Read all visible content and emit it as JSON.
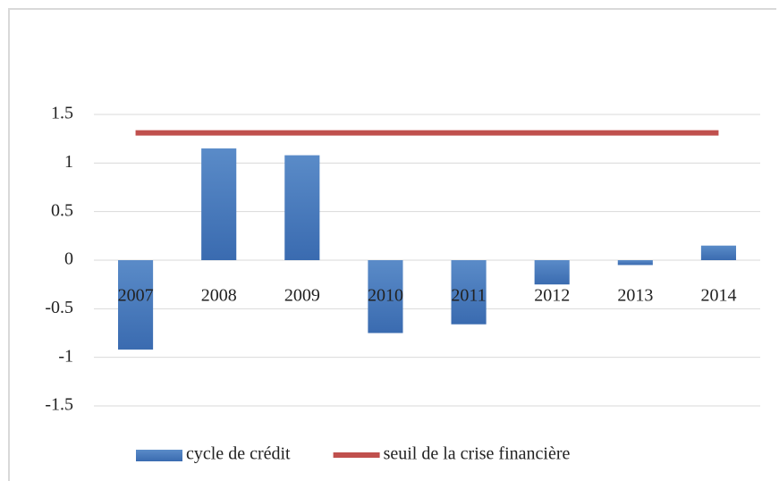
{
  "chart_data": {
    "type": "bar",
    "categories": [
      "2007",
      "2008",
      "2009",
      "2010",
      "2011",
      "2012",
      "2013",
      "2014"
    ],
    "series": [
      {
        "name": "cycle de crédit",
        "type": "bar",
        "color": "#4f81bd",
        "values": [
          -0.92,
          1.15,
          1.08,
          -0.75,
          -0.66,
          -0.25,
          -0.05,
          0.15
        ]
      },
      {
        "name": "seuil de la crise financière",
        "type": "line",
        "color": "#c0504d",
        "values": [
          1.31,
          1.31,
          1.31,
          1.31,
          1.31,
          1.31,
          1.31,
          1.31
        ]
      }
    ],
    "ylim": [
      -1.5,
      1.5
    ],
    "yticks": [
      -1.5,
      -1,
      -0.5,
      0,
      0.5,
      1,
      1.5
    ],
    "grid": true,
    "legend": "bottom"
  }
}
